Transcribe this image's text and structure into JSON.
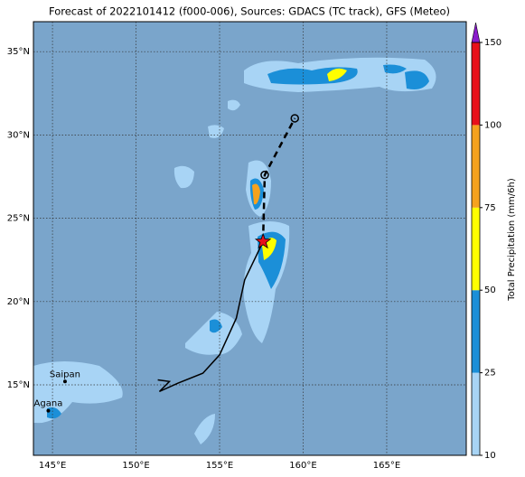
{
  "map": {
    "title": "Forecast of 2022101412 (f000-006), Sources: GDACS (TC track), GFS (Meteo)",
    "xlim": [
      143.86,
      169.76
    ],
    "ylim": [
      10.77,
      36.8
    ],
    "xticks": [
      {
        "value": 145,
        "label": "145°E"
      },
      {
        "value": 150,
        "label": "150°E"
      },
      {
        "value": 155,
        "label": "155°E"
      },
      {
        "value": 160,
        "label": "160°E"
      },
      {
        "value": 165,
        "label": "165°E"
      }
    ],
    "yticks": [
      {
        "value": 15,
        "label": "15°N"
      },
      {
        "value": 20,
        "label": "20°N"
      },
      {
        "value": 25,
        "label": "25°N"
      },
      {
        "value": 30,
        "label": "30°N"
      },
      {
        "value": 35,
        "label": "35°N"
      }
    ],
    "places": [
      {
        "name": "Saipan",
        "lon": 145.75,
        "lat": 15.2
      },
      {
        "name": "Agana",
        "lon": 144.75,
        "lat": 13.45
      }
    ],
    "past_track": {
      "lon": [
        151.3,
        152.0,
        151.4,
        152.5,
        154.0,
        155.0,
        156.0,
        156.5,
        157.6
      ],
      "lat": [
        15.3,
        15.2,
        14.6,
        15.1,
        15.7,
        16.8,
        19.0,
        21.3,
        23.6
      ]
    },
    "forecast_track": {
      "lon": [
        157.6,
        157.7,
        159.5
      ],
      "lat": [
        23.6,
        27.6,
        31.0
      ]
    },
    "colorbar": {
      "label": "Total Precipitation (mm/6h)",
      "levels": [
        10,
        25,
        50,
        75,
        100,
        150
      ],
      "colors": [
        "#a8d4f5",
        "#1b8fd8",
        "#ffff00",
        "#f5a21e",
        "#e8101a"
      ],
      "extend_color": "#8a1ccc"
    }
  }
}
